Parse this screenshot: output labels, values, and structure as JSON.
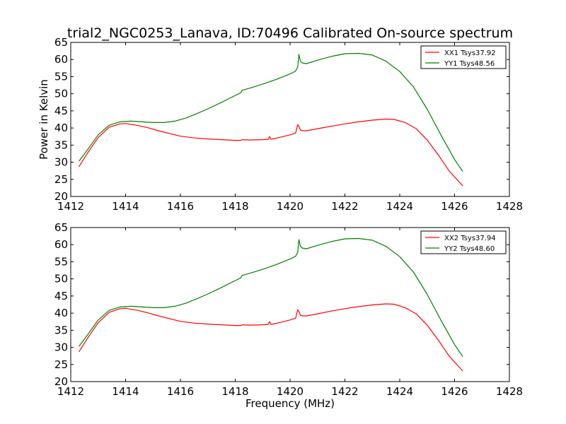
{
  "figure": {
    "title": "trial2_NGC0253_Lanava, ID:70496 Calibrated On-source spectrum"
  },
  "chart_data": [
    {
      "type": "line",
      "title": "trial2_NGC0253_Lanava, ID:70496 Calibrated On-source spectrum",
      "xlabel": "",
      "ylabel": "Power in Kelvin",
      "xlim": [
        1412,
        1428
      ],
      "ylim": [
        20,
        65
      ],
      "xticks": [
        "1412",
        "1414",
        "1416",
        "1418",
        "1420",
        "1422",
        "1424",
        "1426",
        "1428"
      ],
      "yticks": [
        "20",
        "25",
        "30",
        "35",
        "40",
        "45",
        "50",
        "55",
        "60",
        "65"
      ],
      "legend_position": "top-right",
      "grid": false,
      "series": [
        {
          "name": "XX1 Tsys37.92",
          "color": "#ff0000",
          "x": [
            1412.3,
            1412.6,
            1413.0,
            1413.4,
            1413.8,
            1414.0,
            1414.4,
            1414.8,
            1415.2,
            1415.6,
            1416.0,
            1416.5,
            1417.0,
            1417.5,
            1418.0,
            1418.2,
            1418.25,
            1418.5,
            1419.0,
            1419.2,
            1419.25,
            1419.3,
            1419.5,
            1420.0,
            1420.2,
            1420.28,
            1420.32,
            1420.38,
            1420.45,
            1420.6,
            1421.0,
            1421.5,
            1422.0,
            1422.5,
            1423.0,
            1423.5,
            1423.8,
            1424.2,
            1424.6,
            1425.0,
            1425.4,
            1425.8,
            1426.3
          ],
          "values": [
            28.7,
            32.5,
            37.2,
            40.2,
            41.2,
            41.3,
            40.8,
            40.1,
            39.2,
            38.4,
            37.6,
            37.1,
            36.8,
            36.6,
            36.4,
            36.4,
            36.6,
            36.5,
            36.6,
            36.7,
            37.5,
            36.7,
            37.0,
            38.0,
            38.5,
            41.0,
            40.5,
            39.4,
            39.2,
            39.2,
            39.8,
            40.5,
            41.2,
            41.8,
            42.3,
            42.6,
            42.5,
            41.6,
            39.8,
            36.5,
            32.2,
            27.5,
            23.1
          ]
        },
        {
          "name": "YY1 Tsys48.56",
          "color": "#008000",
          "x": [
            1412.3,
            1412.6,
            1413.0,
            1413.4,
            1413.8,
            1414.2,
            1414.6,
            1415.0,
            1415.4,
            1415.8,
            1416.2,
            1416.6,
            1417.0,
            1417.5,
            1418.0,
            1418.2,
            1418.25,
            1418.6,
            1419.0,
            1419.5,
            1420.0,
            1420.2,
            1420.28,
            1420.32,
            1420.38,
            1420.45,
            1420.6,
            1421.0,
            1421.5,
            1422.0,
            1422.5,
            1423.0,
            1423.5,
            1424.0,
            1424.5,
            1425.0,
            1425.5,
            1426.0,
            1426.3
          ],
          "values": [
            30.3,
            33.5,
            38.0,
            40.8,
            41.8,
            42.0,
            41.8,
            41.6,
            41.6,
            42.0,
            42.9,
            44.2,
            45.6,
            47.5,
            49.5,
            50.3,
            51.0,
            51.8,
            52.8,
            54.2,
            55.8,
            56.6,
            57.8,
            61.5,
            59.5,
            59.0,
            58.8,
            59.8,
            60.9,
            61.7,
            61.8,
            61.3,
            59.5,
            56.5,
            52.0,
            45.5,
            38.0,
            30.8,
            27.3
          ]
        }
      ]
    },
    {
      "type": "line",
      "title": "",
      "xlabel": "Frequency (MHz)",
      "ylabel": "",
      "xlim": [
        1412,
        1428
      ],
      "ylim": [
        20,
        65
      ],
      "xticks": [
        "1412",
        "1414",
        "1416",
        "1418",
        "1420",
        "1422",
        "1424",
        "1426",
        "1428"
      ],
      "yticks": [
        "20",
        "25",
        "30",
        "35",
        "40",
        "45",
        "50",
        "55",
        "60",
        "65"
      ],
      "legend_position": "top-right",
      "grid": false,
      "series": [
        {
          "name": "XX2 Tsys37.94",
          "color": "#ff0000",
          "x": [
            1412.3,
            1412.6,
            1413.0,
            1413.4,
            1413.8,
            1414.0,
            1414.4,
            1414.8,
            1415.2,
            1415.6,
            1416.0,
            1416.5,
            1417.0,
            1417.5,
            1418.0,
            1418.2,
            1418.25,
            1418.5,
            1419.0,
            1419.2,
            1419.25,
            1419.3,
            1419.5,
            1420.0,
            1420.2,
            1420.28,
            1420.32,
            1420.38,
            1420.45,
            1420.6,
            1421.0,
            1421.5,
            1422.0,
            1422.5,
            1423.0,
            1423.5,
            1423.8,
            1424.2,
            1424.6,
            1425.0,
            1425.4,
            1425.8,
            1426.3
          ],
          "values": [
            28.7,
            32.5,
            37.2,
            40.2,
            41.3,
            41.4,
            40.9,
            40.1,
            39.2,
            38.4,
            37.6,
            37.1,
            36.8,
            36.6,
            36.4,
            36.4,
            36.6,
            36.5,
            36.6,
            36.7,
            37.5,
            36.7,
            37.0,
            38.0,
            38.5,
            41.0,
            40.5,
            39.4,
            39.2,
            39.2,
            39.8,
            40.6,
            41.3,
            41.9,
            42.4,
            42.7,
            42.6,
            41.6,
            39.8,
            36.5,
            32.2,
            27.5,
            23.1
          ]
        },
        {
          "name": "YY2 Tsys48.60",
          "color": "#008000",
          "x": [
            1412.3,
            1412.6,
            1413.0,
            1413.4,
            1413.8,
            1414.2,
            1414.6,
            1415.0,
            1415.4,
            1415.8,
            1416.2,
            1416.6,
            1417.0,
            1417.5,
            1418.0,
            1418.2,
            1418.25,
            1418.6,
            1419.0,
            1419.5,
            1420.0,
            1420.2,
            1420.28,
            1420.32,
            1420.38,
            1420.45,
            1420.6,
            1421.0,
            1421.5,
            1422.0,
            1422.5,
            1423.0,
            1423.5,
            1424.0,
            1424.5,
            1425.0,
            1425.5,
            1426.0,
            1426.3
          ],
          "values": [
            30.3,
            33.5,
            38.0,
            40.8,
            41.8,
            42.0,
            41.8,
            41.6,
            41.6,
            42.0,
            42.9,
            44.2,
            45.6,
            47.5,
            49.5,
            50.3,
            51.0,
            51.8,
            52.8,
            54.2,
            55.8,
            56.6,
            57.8,
            61.5,
            59.5,
            59.0,
            58.8,
            59.8,
            60.9,
            61.7,
            61.8,
            61.3,
            59.5,
            56.5,
            52.0,
            45.5,
            38.0,
            30.8,
            27.3
          ]
        }
      ]
    }
  ]
}
